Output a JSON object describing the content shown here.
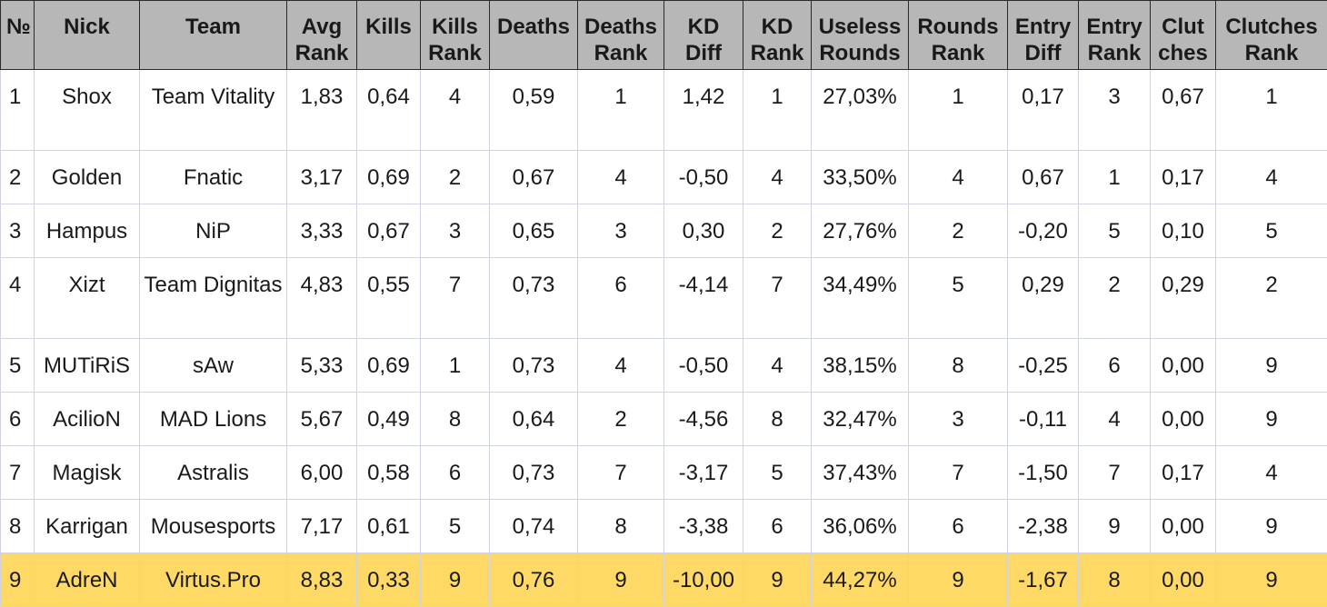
{
  "headers": [
    [
      "№"
    ],
    [
      "Nick"
    ],
    [
      "Team"
    ],
    [
      "Avg",
      "Rank"
    ],
    [
      "Kills"
    ],
    [
      "Kills",
      "Rank"
    ],
    [
      "Deaths"
    ],
    [
      "Deaths",
      "Rank"
    ],
    [
      "KD",
      "Diff"
    ],
    [
      "KD",
      "Rank"
    ],
    [
      "Useless",
      "Rounds"
    ],
    [
      "Rounds",
      "Rank"
    ],
    [
      "Entry",
      "Diff"
    ],
    [
      "Entry",
      "Rank"
    ],
    [
      "Clut",
      "ches"
    ],
    [
      "Clutches",
      "Rank"
    ]
  ],
  "rows": [
    [
      "1",
      "Shox",
      "Team Vitality",
      "1,83",
      "0,64",
      "4",
      "0,59",
      "1",
      "1,42",
      "1",
      "27,03%",
      "1",
      "0,17",
      "3",
      "0,67",
      "1"
    ],
    [
      "2",
      "Golden",
      "Fnatic",
      "3,17",
      "0,69",
      "2",
      "0,67",
      "4",
      "-0,50",
      "4",
      "33,50%",
      "4",
      "0,67",
      "1",
      "0,17",
      "4"
    ],
    [
      "3",
      "Hampus",
      "NiP",
      "3,33",
      "0,67",
      "3",
      "0,65",
      "3",
      "0,30",
      "2",
      "27,76%",
      "2",
      "-0,20",
      "5",
      "0,10",
      "5"
    ],
    [
      "4",
      "Xizt",
      "Team Dignitas",
      "4,83",
      "0,55",
      "7",
      "0,73",
      "6",
      "-4,14",
      "7",
      "34,49%",
      "5",
      "0,29",
      "2",
      "0,29",
      "2"
    ],
    [
      "5",
      "MUTiRiS",
      "sAw",
      "5,33",
      "0,69",
      "1",
      "0,73",
      "4",
      "-0,50",
      "4",
      "38,15%",
      "8",
      "-0,25",
      "6",
      "0,00",
      "9"
    ],
    [
      "6",
      "AcilioN",
      "MAD Lions",
      "5,67",
      "0,49",
      "8",
      "0,64",
      "2",
      "-4,56",
      "8",
      "32,47%",
      "3",
      "-0,11",
      "4",
      "0,00",
      "9"
    ],
    [
      "7",
      "Magisk",
      "Astralis",
      "6,00",
      "0,58",
      "6",
      "0,73",
      "7",
      "-3,17",
      "5",
      "37,43%",
      "7",
      "-1,50",
      "7",
      "0,17",
      "4"
    ],
    [
      "8",
      "Karrigan",
      "Mousesports",
      "7,17",
      "0,61",
      "5",
      "0,74",
      "8",
      "-3,38",
      "6",
      "36,06%",
      "6",
      "-2,38",
      "9",
      "0,00",
      "9"
    ],
    [
      "9",
      "AdreN",
      "Virtus.Pro",
      "8,83",
      "0,33",
      "9",
      "0,76",
      "9",
      "-10,00",
      "9",
      "44,27%",
      "9",
      "-1,67",
      "8",
      "0,00",
      "9"
    ]
  ],
  "highlight_row_index": 8,
  "highlight_color": "#ffd966",
  "header_bg": "#b7b7b7"
}
